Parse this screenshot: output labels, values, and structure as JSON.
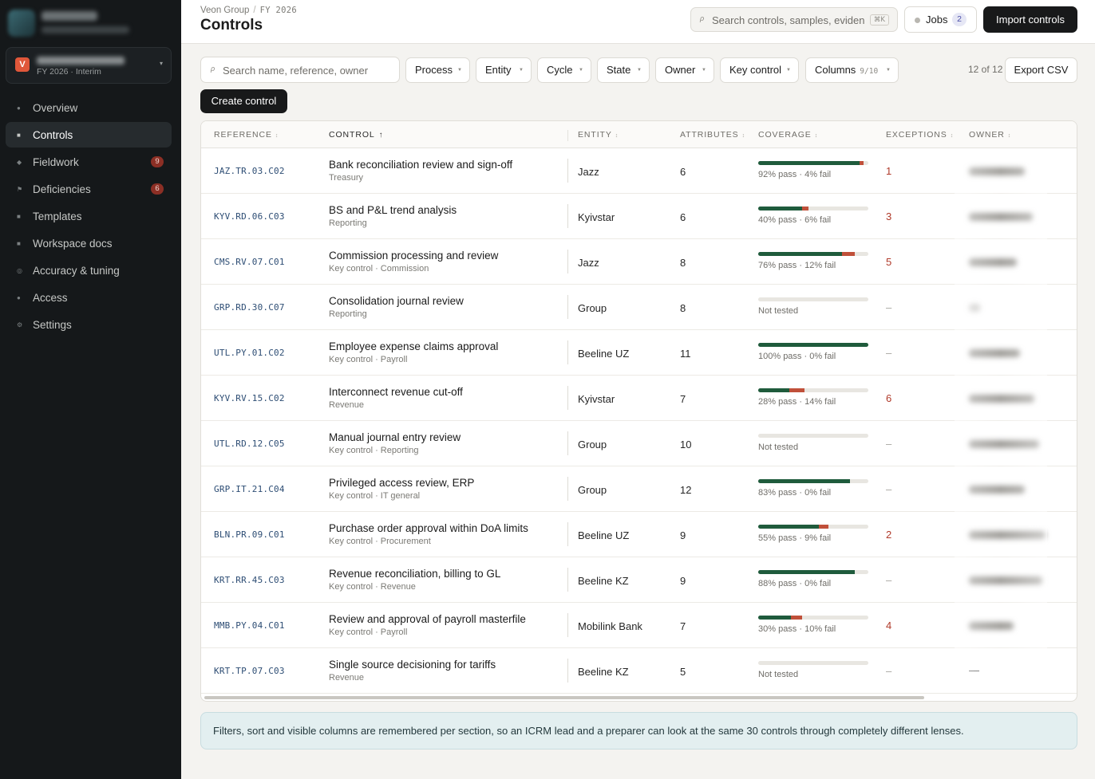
{
  "sidebar": {
    "workspace": {
      "badge": "V",
      "subtitle": "FY 2026 · Interim"
    },
    "nav": [
      {
        "label": "Overview",
        "glyph": "●",
        "icon": "circle-icon"
      },
      {
        "label": "Controls",
        "glyph": "■",
        "icon": "square-icon",
        "active": true
      },
      {
        "label": "Fieldwork",
        "glyph": "◆",
        "icon": "diamond-icon",
        "count": "9"
      },
      {
        "label": "Deficiencies",
        "glyph": "⚑",
        "icon": "flag-icon",
        "count": "6"
      },
      {
        "label": "Templates",
        "glyph": "■",
        "icon": "square-icon"
      },
      {
        "label": "Workspace docs",
        "glyph": "■",
        "icon": "doc-icon"
      },
      {
        "label": "Accuracy & tuning",
        "glyph": "◎",
        "icon": "target-icon"
      },
      {
        "label": "Access",
        "glyph": "●",
        "icon": "circle-icon"
      },
      {
        "label": "Settings",
        "glyph": "⚙",
        "icon": "gear-icon"
      }
    ]
  },
  "header": {
    "crumb_org": "Veon Group",
    "crumb_sep": "/",
    "crumb_period": "FY 2026",
    "title": "Controls",
    "search_placeholder": "Search controls, samples, evidence",
    "search_kbd": "⌘K",
    "jobs_label": "Jobs",
    "jobs_count": "2",
    "import_label": "Import controls"
  },
  "toolbar": {
    "search_placeholder": "Search name, reference, owner",
    "filters": [
      "Process",
      "Entity",
      "Cycle",
      "State",
      "Owner",
      "Key control"
    ],
    "columns_label": "Columns",
    "columns_count": "9/10",
    "result_count": "12 of 12",
    "export_label": "Export CSV",
    "create_label": "Create control"
  },
  "table": {
    "headers": {
      "reference": "REFERENCE",
      "control": "CONTROL",
      "entity": "ENTITY",
      "attributes": "ATTRIBUTES",
      "coverage": "COVERAGE",
      "exceptions": "EXCEPTIONS",
      "owner": "OWNER"
    },
    "sort_active": "↑",
    "sort_idle": "↕",
    "rows": [
      {
        "ref": "JAZ.TR.03.C02",
        "name": "Bank reconciliation review and sign-off",
        "sub": "Treasury",
        "entity": "Jazz",
        "attributes": "6",
        "pass": 92,
        "fail": 4,
        "coverage": "92% pass · 4% fail",
        "exceptions": "1"
      },
      {
        "ref": "KYV.RD.06.C03",
        "name": "BS and P&L trend analysis",
        "sub": "Reporting",
        "entity": "Kyivstar",
        "attributes": "6",
        "pass": 40,
        "fail": 6,
        "coverage": "40% pass · 6% fail",
        "exceptions": "3"
      },
      {
        "ref": "CMS.RV.07.C01",
        "name": "Commission processing and review",
        "sub": "Key control · Commission",
        "entity": "Jazz",
        "attributes": "8",
        "pass": 76,
        "fail": 12,
        "coverage": "76% pass · 12% fail",
        "exceptions": "5"
      },
      {
        "ref": "GRP.RD.30.C07",
        "name": "Consolidation journal review",
        "sub": "Reporting",
        "entity": "Group",
        "attributes": "8",
        "pass": 0,
        "fail": 0,
        "coverage": "Not tested",
        "exceptions": "–"
      },
      {
        "ref": "UTL.PY.01.C02",
        "name": "Employee expense claims approval",
        "sub": "Key control · Payroll",
        "entity": "Beeline UZ",
        "attributes": "11",
        "pass": 100,
        "fail": 0,
        "coverage": "100% pass · 0% fail",
        "exceptions": "–"
      },
      {
        "ref": "KYV.RV.15.C02",
        "name": "Interconnect revenue cut-off",
        "sub": "Revenue",
        "entity": "Kyivstar",
        "attributes": "7",
        "pass": 28,
        "fail": 14,
        "coverage": "28% pass · 14% fail",
        "exceptions": "6"
      },
      {
        "ref": "UTL.RD.12.C05",
        "name": "Manual journal entry review",
        "sub": "Key control · Reporting",
        "entity": "Group",
        "attributes": "10",
        "pass": 0,
        "fail": 0,
        "coverage": "Not tested",
        "exceptions": "–"
      },
      {
        "ref": "GRP.IT.21.C04",
        "name": "Privileged access review, ERP",
        "sub": "Key control · IT general",
        "entity": "Group",
        "attributes": "12",
        "pass": 83,
        "fail": 0,
        "coverage": "83% pass · 0% fail",
        "exceptions": "–"
      },
      {
        "ref": "BLN.PR.09.C01",
        "name": "Purchase order approval within DoA limits",
        "sub": "Key control · Procurement",
        "entity": "Beeline UZ",
        "attributes": "9",
        "pass": 55,
        "fail": 9,
        "coverage": "55% pass · 9% fail",
        "exceptions": "2"
      },
      {
        "ref": "KRT.RR.45.C03",
        "name": "Revenue reconciliation, billing to GL",
        "sub": "Key control · Revenue",
        "entity": "Beeline KZ",
        "attributes": "9",
        "pass": 88,
        "fail": 0,
        "coverage": "88% pass · 0% fail",
        "exceptions": "–"
      },
      {
        "ref": "MMB.PY.04.C01",
        "name": "Review and approval of payroll masterfile",
        "sub": "Key control · Payroll",
        "entity": "Mobilink Bank",
        "attributes": "7",
        "pass": 30,
        "fail": 10,
        "coverage": "30% pass · 10% fail",
        "exceptions": "4"
      },
      {
        "ref": "KRT.TP.07.C03",
        "name": "Single source decisioning for tariffs",
        "sub": "Revenue",
        "entity": "Beeline KZ",
        "attributes": "5",
        "pass": 0,
        "fail": 0,
        "coverage": "Not tested",
        "exceptions": "–",
        "owner": "—"
      }
    ]
  },
  "note": "Filters, sort and visible columns are remembered per section, so an ICRM lead and a preparer can look at the same 30 controls through completely different lenses."
}
